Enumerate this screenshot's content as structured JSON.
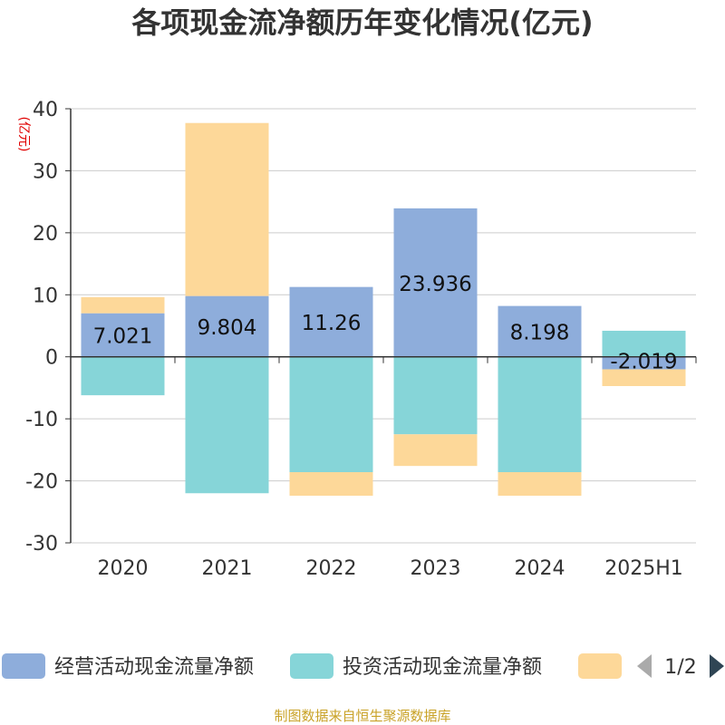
{
  "chart_data": {
    "type": "bar",
    "stacked": true,
    "title": "各项现金流净额历年变化情况(亿元)",
    "ylabel": "(亿元)",
    "ylim": [
      -30,
      40
    ],
    "yticks": [
      40,
      30,
      20,
      10,
      0,
      -10,
      -20,
      -30
    ],
    "grid": true,
    "categories": [
      "2020",
      "2021",
      "2022",
      "2023",
      "2024",
      "2025H1"
    ],
    "series": [
      {
        "name": "经营活动现金流量净额",
        "color": "#8eaddb",
        "values": [
          7.021,
          9.804,
          11.26,
          23.936,
          8.198,
          -2.019
        ],
        "labels": [
          "7.021",
          "9.804",
          "11.26",
          "23.936",
          "8.198",
          "-2.019"
        ]
      },
      {
        "name": "投资活动现金流量净额",
        "color": "#86d5d8",
        "values": [
          -6.2,
          -22.0,
          -18.6,
          -12.5,
          -18.6,
          4.2
        ]
      },
      {
        "name": "",
        "color": "#fdd899",
        "values": [
          2.6,
          27.9,
          -3.8,
          -5.1,
          -3.8,
          -2.7
        ]
      }
    ],
    "legend": {
      "position": "bottom",
      "page": "1/2"
    },
    "footer": "制图数据来自恒生聚源数据库"
  }
}
